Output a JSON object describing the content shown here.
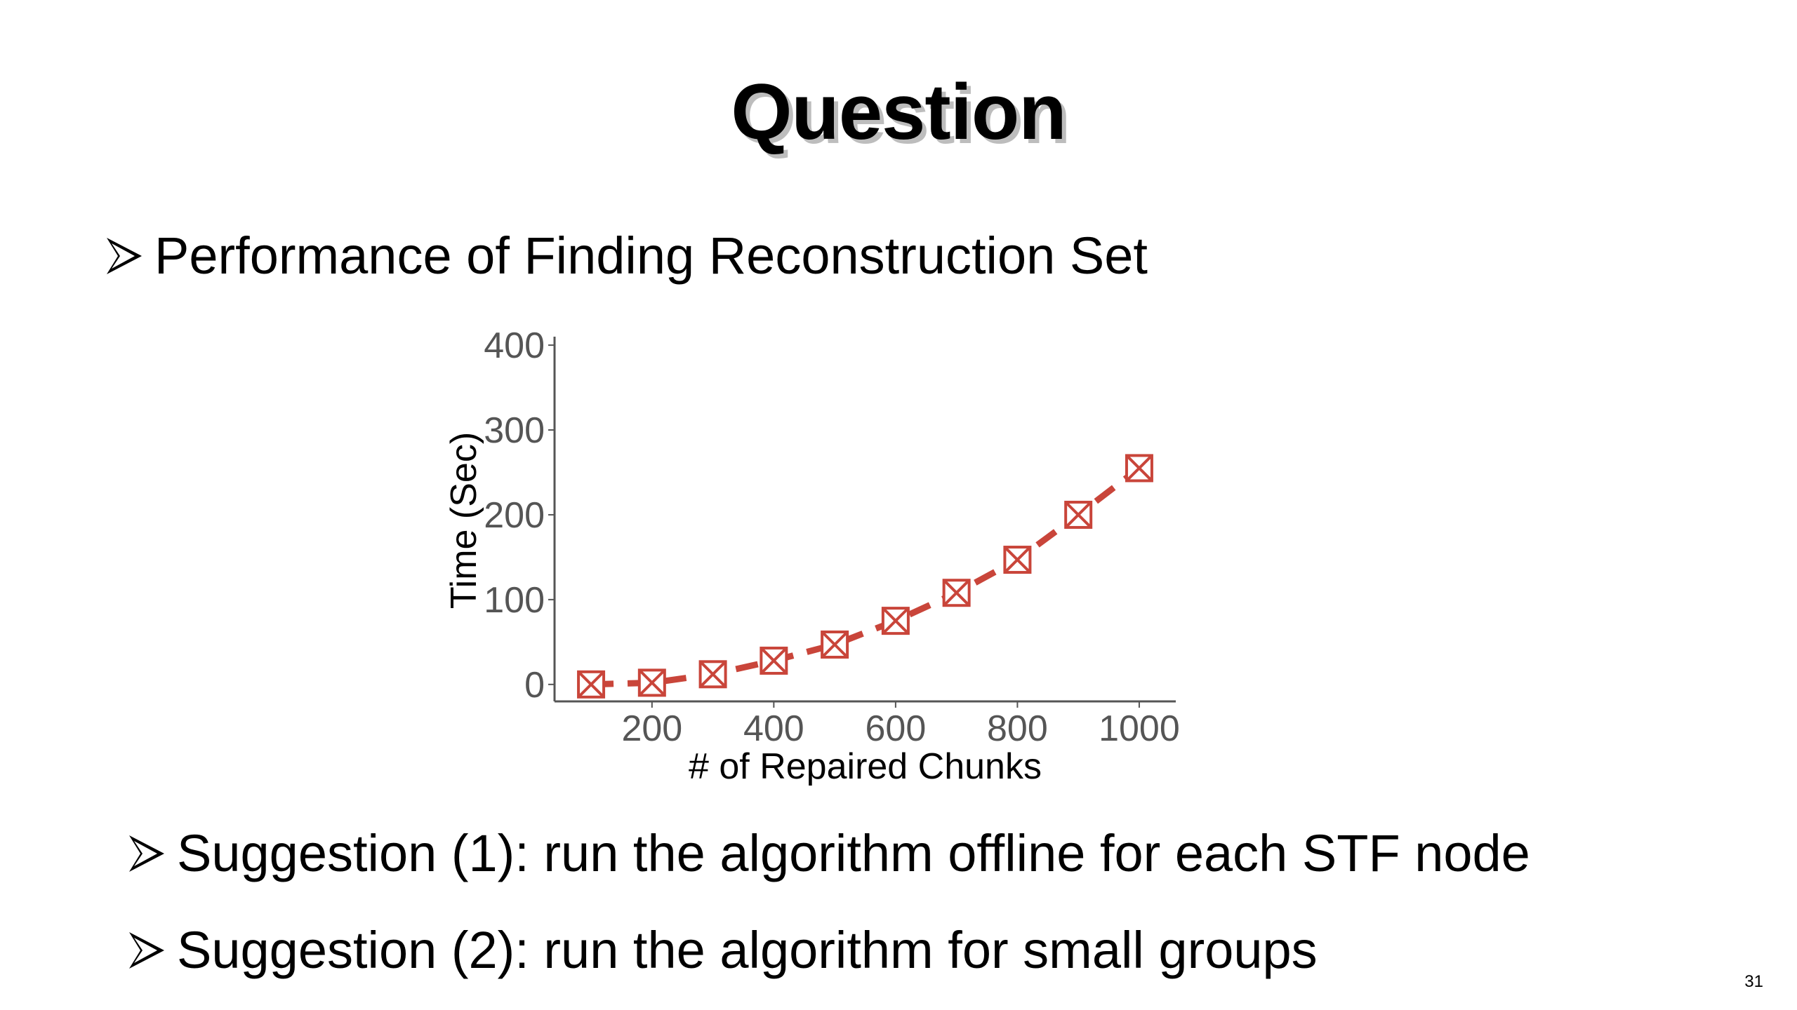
{
  "slide": {
    "title": "Question",
    "bullets": [
      "Performance of Finding Reconstruction Set",
      "Suggestion (1): run the algorithm offline for each STF node",
      "Suggestion (2): run the algorithm for small groups"
    ],
    "page_number": "31",
    "bullet_icon": "arrowhead-icon"
  },
  "chart_data": {
    "type": "line",
    "xlabel": "# of Repaired Chunks",
    "ylabel": "Time (Sec)",
    "x": [
      100,
      200,
      300,
      400,
      500,
      600,
      700,
      800,
      900,
      1000
    ],
    "series": [
      {
        "values": [
          0,
          2,
          12,
          28,
          47,
          75,
          108,
          147,
          200,
          255
        ],
        "color": "#c9453a",
        "line_style": "dashed",
        "marker": "boxed-x"
      }
    ],
    "xlim": [
      40,
      1060
    ],
    "ylim": [
      -20,
      410
    ],
    "xticks": [
      200,
      400,
      600,
      800,
      1000
    ],
    "yticks": [
      0,
      100,
      200,
      300,
      400
    ],
    "grid": false,
    "legend": "none",
    "axis_color": "#555555",
    "tick_label_color": "#555555"
  }
}
